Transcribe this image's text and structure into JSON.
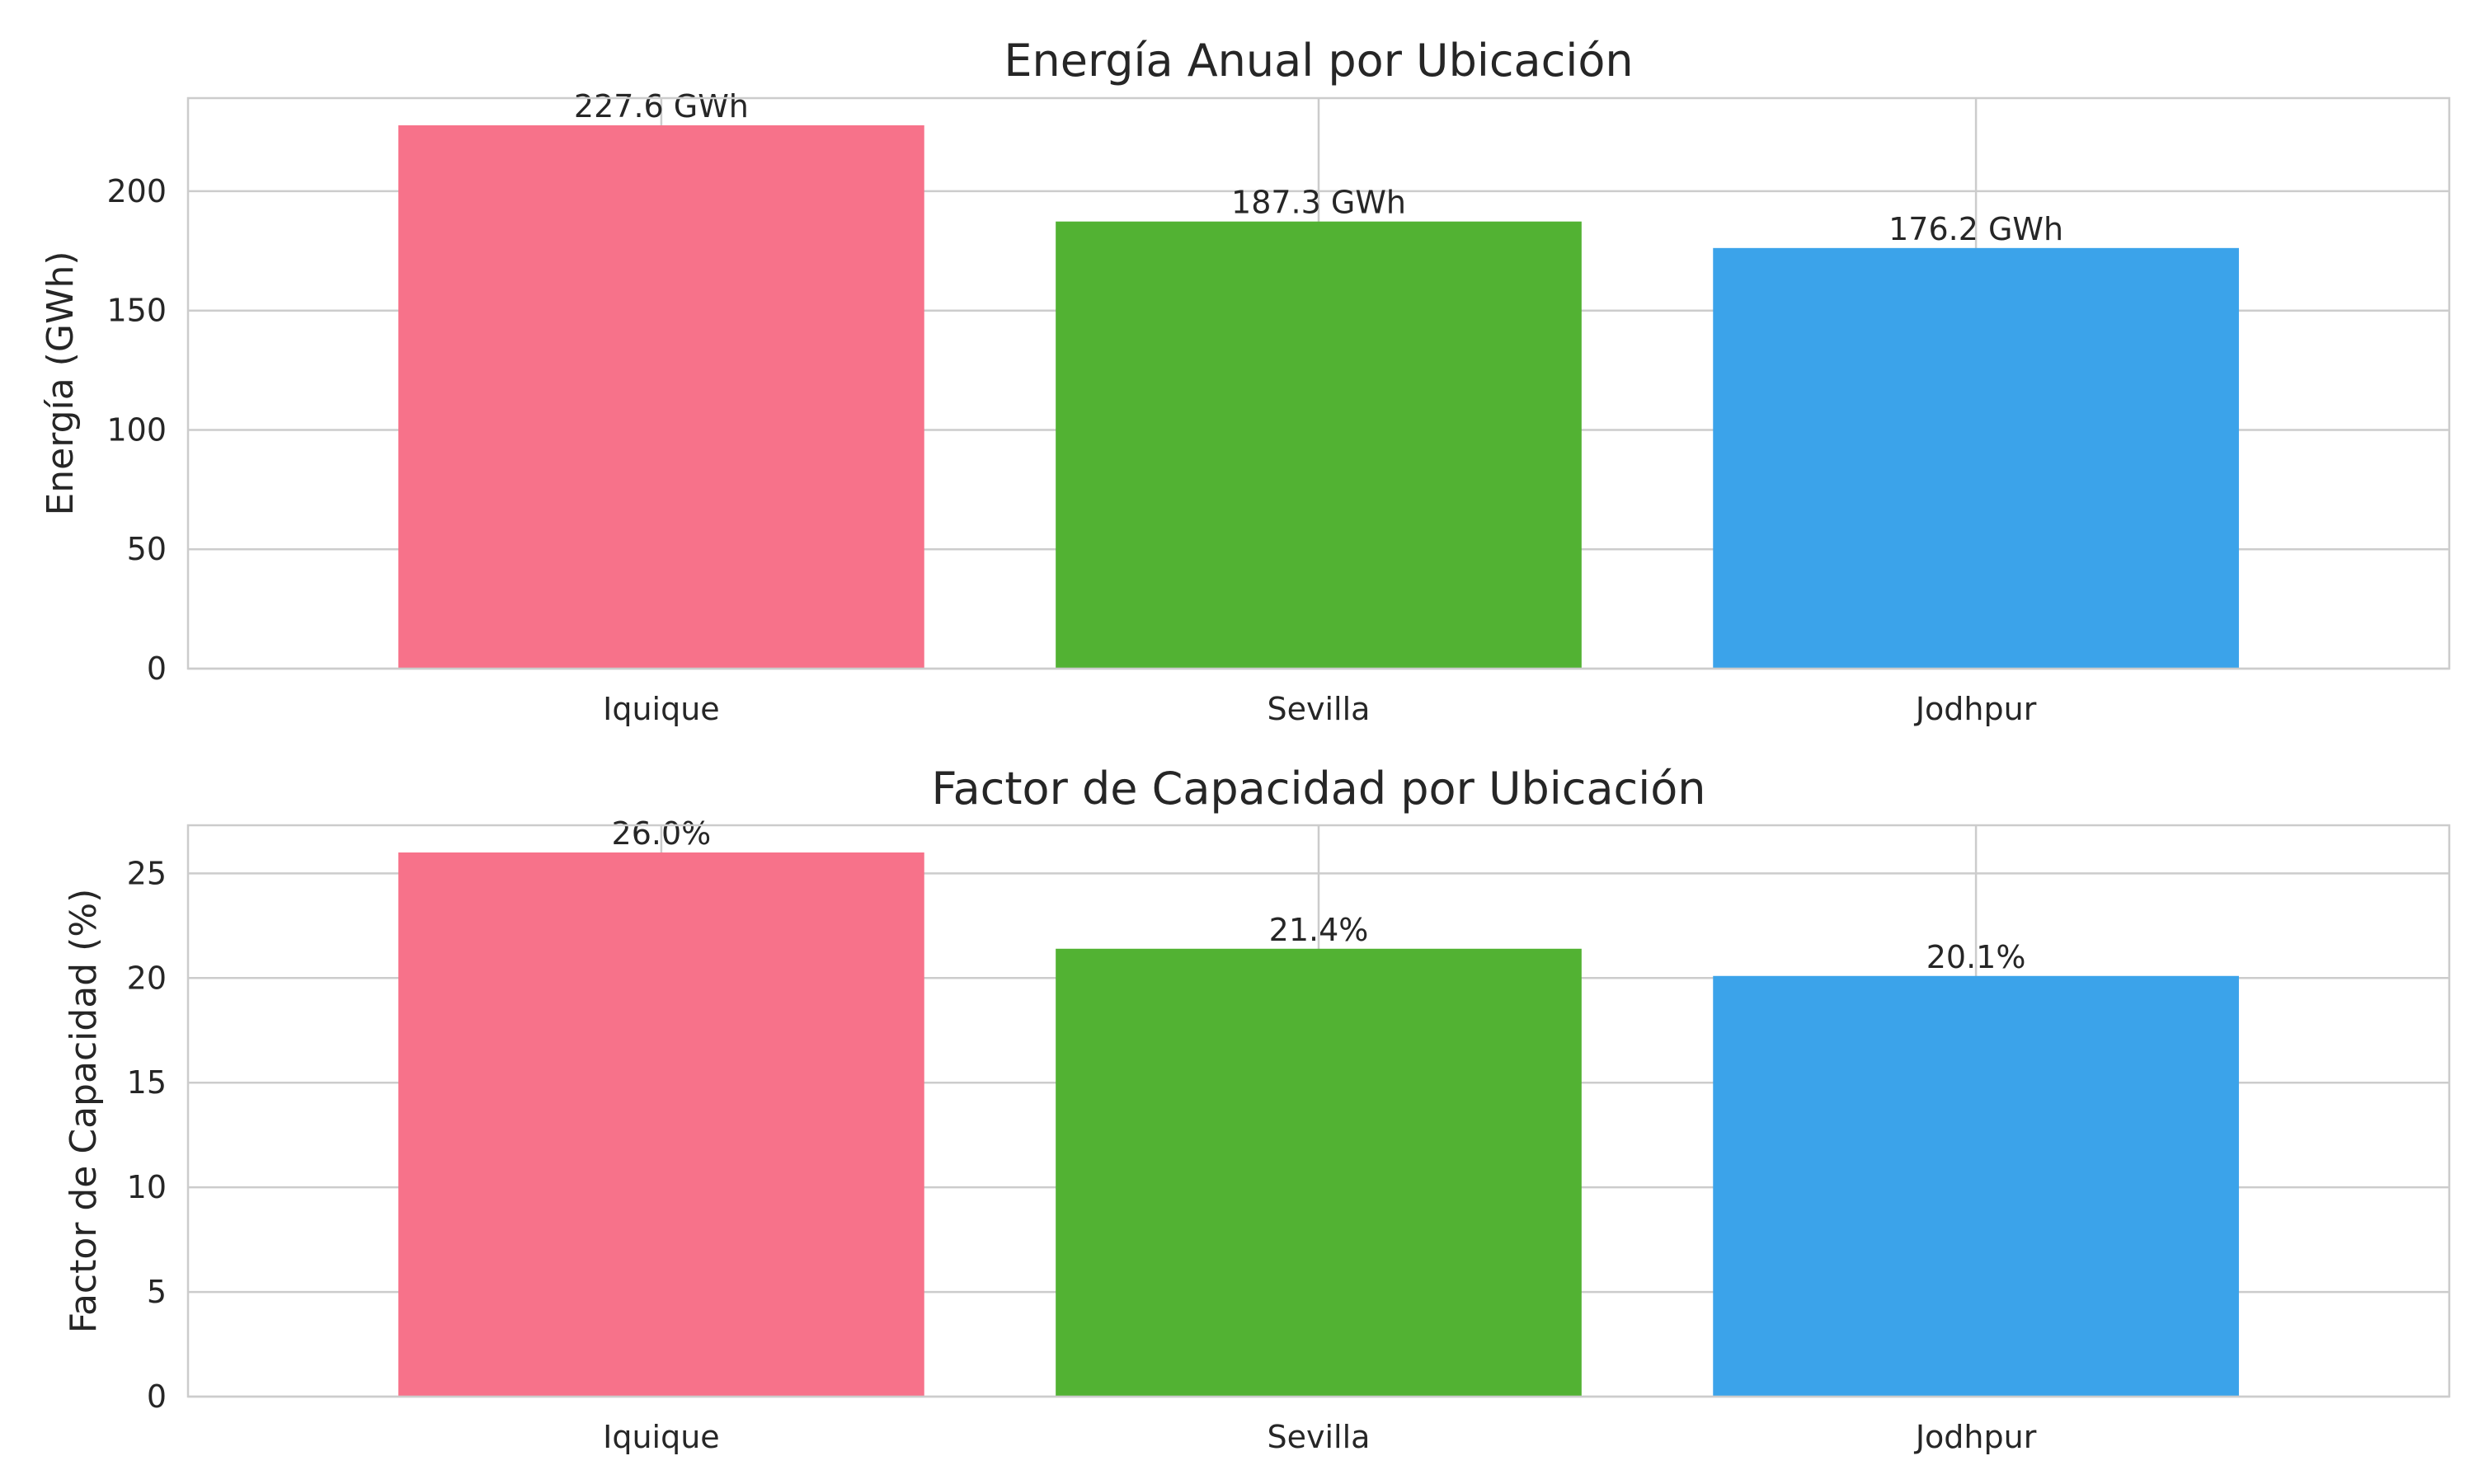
{
  "chart_data": [
    {
      "type": "bar",
      "title": "Energía Anual por Ubicación",
      "xlabel": "",
      "ylabel": "Energía (GWh)",
      "categories": [
        "Iquique",
        "Sevilla",
        "Jodhpur"
      ],
      "values": [
        227.6,
        187.3,
        176.2
      ],
      "data_labels": [
        "227.6 GWh",
        "187.3 GWh",
        "176.2 GWh"
      ],
      "colors": [
        "#f7728a",
        "#52b233",
        "#3ba3ea"
      ],
      "ylim": [
        0,
        239
      ],
      "yticks": [
        0,
        50,
        100,
        150,
        200
      ],
      "grid": true,
      "legend": "none"
    },
    {
      "type": "bar",
      "title": "Factor de Capacidad por Ubicación",
      "xlabel": "",
      "ylabel": "Factor de Capacidad (%)",
      "categories": [
        "Iquique",
        "Sevilla",
        "Jodhpur"
      ],
      "values": [
        26.0,
        21.4,
        20.1
      ],
      "data_labels": [
        "26.0%",
        "21.4%",
        "20.1%"
      ],
      "colors": [
        "#f7728a",
        "#52b233",
        "#3ba3ea"
      ],
      "ylim": [
        0,
        27.3
      ],
      "yticks": [
        0,
        5,
        10,
        15,
        20,
        25
      ],
      "grid": true,
      "legend": "none"
    }
  ]
}
